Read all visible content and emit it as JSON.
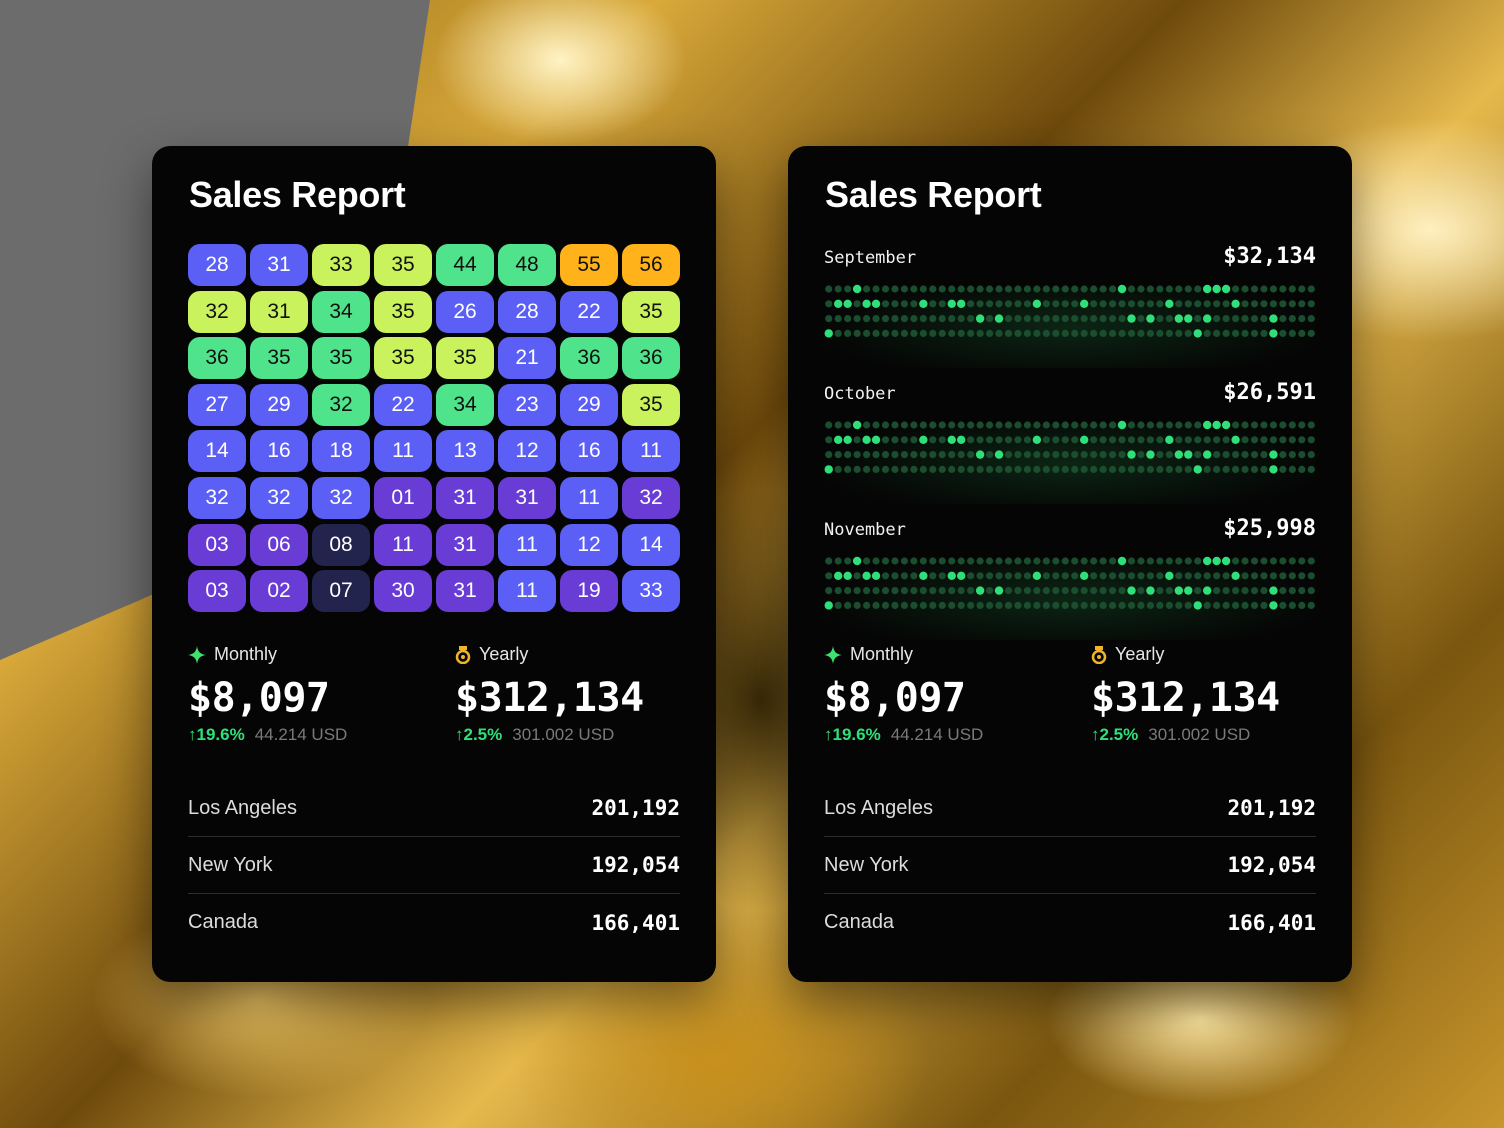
{
  "left_card": {
    "title": "Sales Report",
    "heatmap": [
      [
        "28",
        "31",
        "33",
        "35",
        "44",
        "48",
        "55",
        "56"
      ],
      [
        "32",
        "31",
        "34",
        "35",
        "26",
        "28",
        "22",
        "35"
      ],
      [
        "36",
        "35",
        "35",
        "35",
        "35",
        "21",
        "36",
        "36"
      ],
      [
        "27",
        "29",
        "32",
        "22",
        "34",
        "23",
        "29",
        "35"
      ],
      [
        "14",
        "16",
        "18",
        "11",
        "13",
        "12",
        "16",
        "11"
      ],
      [
        "32",
        "32",
        "32",
        "01",
        "31",
        "31",
        "11",
        "32"
      ],
      [
        "03",
        "06",
        "08",
        "11",
        "31",
        "11",
        "12",
        "14"
      ],
      [
        "03",
        "02",
        "07",
        "30",
        "31",
        "11",
        "19",
        "33"
      ]
    ],
    "heatmap_colors": [
      [
        "#5b5ff5",
        "#5b5ff5",
        "#c9f25c",
        "#c9f25c",
        "#4fe38b",
        "#4fe38b",
        "#ffb21a",
        "#ffb21a"
      ],
      [
        "#c9f25c",
        "#c9f25c",
        "#4fe38b",
        "#c9f25c",
        "#5b5ff5",
        "#5b5ff5",
        "#5b5ff5",
        "#c9f25c"
      ],
      [
        "#4fe38b",
        "#4fe38b",
        "#4fe38b",
        "#c9f25c",
        "#c9f25c",
        "#5b5ff5",
        "#4fe38b",
        "#4fe38b"
      ],
      [
        "#5b5ff5",
        "#5b5ff5",
        "#4fe38b",
        "#5b5ff5",
        "#4fe38b",
        "#5b5ff5",
        "#5b5ff5",
        "#c9f25c"
      ],
      [
        "#5b5ff5",
        "#5b5ff5",
        "#5b5ff5",
        "#5b5ff5",
        "#5b5ff5",
        "#5b5ff5",
        "#5b5ff5",
        "#5b5ff5"
      ],
      [
        "#5b5ff5",
        "#5b5ff5",
        "#5b5ff5",
        "#6a3cd6",
        "#6a3cd6",
        "#6a3cd6",
        "#5b5ff5",
        "#6a3cd6"
      ],
      [
        "#6a3cd6",
        "#6a3cd6",
        "#23244d",
        "#6a3cd6",
        "#6a3cd6",
        "#5b5ff5",
        "#5b5ff5",
        "#5b5ff5"
      ],
      [
        "#6a3cd6",
        "#6a3cd6",
        "#23244d",
        "#6a3cd6",
        "#6a3cd6",
        "#5b5ff5",
        "#6a3cd6",
        "#5b5ff5"
      ]
    ],
    "monthly": {
      "label": "Monthly",
      "value": "$8,097",
      "change": "↑19.6%",
      "usd": "44.214 USD"
    },
    "yearly": {
      "label": "Yearly",
      "value": "$312,134",
      "change": "↑2.5%",
      "usd": "301.002 USD"
    },
    "cities": [
      {
        "name": "Los Angeles",
        "value": "201,192"
      },
      {
        "name": "New York",
        "value": "192,054"
      },
      {
        "name": "Canada",
        "value": "166,401"
      }
    ]
  },
  "right_card": {
    "title": "Sales Report",
    "months": [
      {
        "name": "September",
        "value": "$32,134"
      },
      {
        "name": "October",
        "value": "$26,591"
      },
      {
        "name": "November",
        "value": "$25,998"
      }
    ],
    "dot_rows": [
      "0001000000000000000000000000000100000000111000000000",
      "0110110000100110000000100001000000001000000100000000",
      "0000000000000000101000000000000010100110100000010000",
      "1000000000000000000000000000000000000001000000010000"
    ],
    "monthly": {
      "label": "Monthly",
      "value": "$8,097",
      "change": "↑19.6%",
      "usd": "44.214 USD"
    },
    "yearly": {
      "label": "Yearly",
      "value": "$312,134",
      "change": "↑2.5%",
      "usd": "301.002 USD"
    },
    "cities": [
      {
        "name": "Los Angeles",
        "value": "201,192"
      },
      {
        "name": "New York",
        "value": "192,054"
      },
      {
        "name": "Canada",
        "value": "166,401"
      }
    ]
  },
  "colors": {
    "accent_green": "#2fe07a",
    "dot_on": "#2fe07a",
    "dot_off": "#1b4d2f",
    "card_bg": "#050505",
    "spark_icon": "#3ee36f",
    "medal_icon": "#f2b52a"
  },
  "icons": {
    "monthly": "sparkle-icon",
    "yearly": "medal-icon"
  }
}
